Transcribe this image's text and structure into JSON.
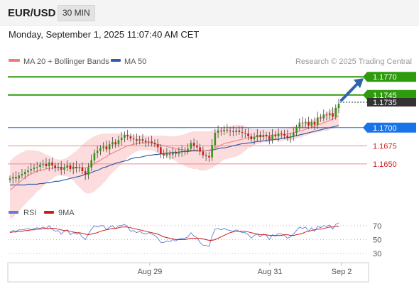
{
  "header": {
    "pair": "EUR/USD",
    "timeframe": "30 MIN",
    "datetime": "Monday, September 1, 2025 11:07:40 AM CET"
  },
  "colors": {
    "green_level": "#2e9a0e",
    "blue_level": "#1874e8",
    "red_level": "#f08a8a",
    "price_dark": "#333333",
    "candle_up": "#2e9a0e",
    "candle_down": "#d11a1a",
    "bollinger_fill": "#fbd6d6",
    "ma20": "#f07a7a",
    "ma50": "#2f5fa8",
    "rsi": "#5b7fd6",
    "rsi_ma": "#d11a1a",
    "arrow": "#2f63a8"
  },
  "chart_data": [
    {
      "type": "candlestick",
      "legend": [
        "MA 20 + Bollinger Bands",
        "MA 50"
      ],
      "legend_placement": "top-left",
      "source": "Research © 2025 Trading Central",
      "ylim": [
        1.16,
        1.178
      ],
      "levels": [
        {
          "value": 1.177,
          "label": "1.1770",
          "kind": "green"
        },
        {
          "value": 1.1745,
          "label": "1.1745",
          "kind": "green"
        },
        {
          "value": 1.1735,
          "label": "1.1735",
          "kind": "price"
        },
        {
          "value": 1.17,
          "label": "1.1700",
          "kind": "blue"
        },
        {
          "value": 1.1675,
          "label": "1.1675",
          "kind": "red"
        },
        {
          "value": 1.165,
          "label": "1.1650",
          "kind": "red"
        }
      ],
      "current_price": 1.1735,
      "closes": [
        1.163,
        1.1632,
        1.163,
        1.1634,
        1.1636,
        1.1639,
        1.1641,
        1.1643,
        1.1645,
        1.1646,
        1.1649,
        1.165,
        1.1647,
        1.1652,
        1.1648,
        1.1644,
        1.1646,
        1.1642,
        1.1645,
        1.1648,
        1.1643,
        1.1646,
        1.1644,
        1.1645,
        1.164,
        1.1635,
        1.1645,
        1.1655,
        1.1665,
        1.1668,
        1.1672,
        1.1674,
        1.167,
        1.1677,
        1.168,
        1.1677,
        1.1683,
        1.1686,
        1.169,
        1.1688,
        1.1685,
        1.1684,
        1.1682,
        1.1684,
        1.1682,
        1.168,
        1.1681,
        1.1679,
        1.1677,
        1.1673,
        1.1664,
        1.1662,
        1.1664,
        1.1663,
        1.1666,
        1.1664,
        1.1667,
        1.1668,
        1.1668,
        1.1671,
        1.1679,
        1.1675,
        1.1673,
        1.1667,
        1.1662,
        1.1661,
        1.1659,
        1.1676,
        1.1693,
        1.1696,
        1.1695,
        1.1697,
        1.1696,
        1.1695,
        1.1694,
        1.1696,
        1.1694,
        1.1693,
        1.1692,
        1.1688,
        1.1684,
        1.1687,
        1.169,
        1.1687,
        1.169,
        1.1688,
        1.1683,
        1.169,
        1.1688,
        1.1692,
        1.1691,
        1.1689,
        1.1686,
        1.1688,
        1.1693,
        1.17,
        1.1707,
        1.1706,
        1.1708,
        1.1703,
        1.1708,
        1.1704,
        1.1714,
        1.1713,
        1.1718,
        1.1717,
        1.172,
        1.1715,
        1.1727,
        1.1733
      ],
      "ma20": [
        1.1614,
        1.1617,
        1.1621,
        1.1624,
        1.1628,
        1.1631,
        1.1634,
        1.1636,
        1.1638,
        1.164,
        1.1641,
        1.1642,
        1.1643,
        1.1644,
        1.1644,
        1.1645,
        1.1645,
        1.1645,
        1.1645,
        1.1646,
        1.1646,
        1.1646,
        1.1645,
        1.1645,
        1.1645,
        1.1645,
        1.1646,
        1.1648,
        1.165,
        1.1653,
        1.1655,
        1.1658,
        1.166,
        1.1663,
        1.1665,
        1.1667,
        1.1669,
        1.1671,
        1.1673,
        1.1675,
        1.1676,
        1.1677,
        1.1678,
        1.1679,
        1.1679,
        1.1679,
        1.1679,
        1.1679,
        1.1678,
        1.1677,
        1.1676,
        1.1675,
        1.1674,
        1.1673,
        1.1672,
        1.1671,
        1.167,
        1.167,
        1.1669,
        1.1669,
        1.1669,
        1.1669,
        1.1669,
        1.1668,
        1.1668,
        1.1668,
        1.1669,
        1.167,
        1.1672,
        1.1674,
        1.1676,
        1.1678,
        1.1679,
        1.168,
        1.1681,
        1.1682,
        1.1683,
        1.1684,
        1.1685,
        1.1686,
        1.1686,
        1.1687,
        1.1688,
        1.1688,
        1.1689,
        1.1689,
        1.1689,
        1.169,
        1.169,
        1.169,
        1.169,
        1.1691,
        1.1691,
        1.1692,
        1.1693,
        1.1694,
        1.1695,
        1.1696,
        1.1698,
        1.1699,
        1.1701,
        1.1702,
        1.1704,
        1.1705,
        1.1707,
        1.1708,
        1.171,
        1.1712,
        1.1714,
        1.1716
      ],
      "ma50": [
        1.1621,
        1.1621,
        1.1621,
        1.1621,
        1.1621,
        1.1621,
        1.1622,
        1.1622,
        1.1622,
        1.1622,
        1.1623,
        1.1623,
        1.1624,
        1.1624,
        1.1625,
        1.1626,
        1.1626,
        1.1627,
        1.1628,
        1.1629,
        1.163,
        1.1631,
        1.1632,
        1.1633,
        1.1634,
        1.1636,
        1.1637,
        1.1638,
        1.164,
        1.1641,
        1.1643,
        1.1645,
        1.1646,
        1.1648,
        1.1649,
        1.1651,
        1.1652,
        1.1653,
        1.1654,
        1.1655,
        1.1657,
        1.1658,
        1.1659,
        1.1659,
        1.166,
        1.1661,
        1.1662,
        1.1662,
        1.1663,
        1.1663,
        1.1664,
        1.1664,
        1.1665,
        1.1665,
        1.1666,
        1.1666,
        1.1666,
        1.1667,
        1.1667,
        1.1667,
        1.1668,
        1.1668,
        1.1668,
        1.1668,
        1.1668,
        1.1668,
        1.1669,
        1.1669,
        1.167,
        1.1671,
        1.1672,
        1.1672,
        1.1673,
        1.1674,
        1.1675,
        1.1676,
        1.1677,
        1.1678,
        1.1678,
        1.1679,
        1.1679,
        1.168,
        1.1681,
        1.1681,
        1.1682,
        1.1682,
        1.1683,
        1.1683,
        1.1684,
        1.1684,
        1.1685,
        1.1686,
        1.1686,
        1.1687,
        1.1688,
        1.1689,
        1.169,
        1.1691,
        1.1692,
        1.1693,
        1.1694,
        1.1695,
        1.1696,
        1.1697,
        1.1698,
        1.1699,
        1.17,
        1.1701,
        1.1702,
        1.1703
      ],
      "band_upper": [
        1.1654,
        1.1658,
        1.1661,
        1.1664,
        1.1666,
        1.1668,
        1.1669,
        1.1669,
        1.1669,
        1.1668,
        1.1667,
        1.1665,
        1.1663,
        1.1661,
        1.1659,
        1.1657,
        1.1656,
        1.1656,
        1.1657,
        1.1659,
        1.1662,
        1.1665,
        1.1668,
        1.1672,
        1.1676,
        1.168,
        1.1683,
        1.1686,
        1.1688,
        1.169,
        1.1691,
        1.1692,
        1.1692,
        1.1692,
        1.1692,
        1.1692,
        1.1692,
        1.1692,
        1.1692,
        1.1691,
        1.169,
        1.1689,
        1.1689,
        1.1689,
        1.1689,
        1.1689,
        1.1689,
        1.1689,
        1.1689,
        1.1689,
        1.1689,
        1.1689,
        1.1688,
        1.1688,
        1.1688,
        1.1688,
        1.1689,
        1.169,
        1.1691,
        1.1693,
        1.1694,
        1.1695,
        1.1695,
        1.1695,
        1.1695,
        1.1695,
        1.1695,
        1.1696,
        1.1697,
        1.1698,
        1.1699,
        1.17,
        1.1701,
        1.1702,
        1.1703,
        1.1704,
        1.1704,
        1.1703,
        1.1702,
        1.17,
        1.1699,
        1.1698,
        1.1698,
        1.1698,
        1.1698,
        1.1698,
        1.1698,
        1.1698,
        1.1698,
        1.1698,
        1.1699,
        1.1699,
        1.17,
        1.1701,
        1.1702,
        1.1703,
        1.1704,
        1.1705,
        1.1707,
        1.1708,
        1.171,
        1.1712,
        1.1714,
        1.1716,
        1.1718,
        1.1721,
        1.1723,
        1.1726,
        1.1728,
        1.173
      ],
      "band_lower": [
        1.1574,
        1.1576,
        1.1581,
        1.1584,
        1.159,
        1.1594,
        1.1599,
        1.1603,
        1.1607,
        1.1612,
        1.1615,
        1.1619,
        1.1623,
        1.1627,
        1.1629,
        1.1633,
        1.1634,
        1.1634,
        1.1633,
        1.1633,
        1.163,
        1.1627,
        1.1622,
        1.1618,
        1.1614,
        1.161,
        1.1609,
        1.161,
        1.1612,
        1.1616,
        1.1619,
        1.1624,
        1.1628,
        1.1634,
        1.1638,
        1.1642,
        1.1646,
        1.165,
        1.1654,
        1.1659,
        1.1662,
        1.1665,
        1.1667,
        1.1669,
        1.1669,
        1.1669,
        1.1669,
        1.1669,
        1.1667,
        1.1665,
        1.1663,
        1.1661,
        1.166,
        1.1658,
        1.1656,
        1.1654,
        1.1651,
        1.165,
        1.1647,
        1.1645,
        1.1644,
        1.1643,
        1.1643,
        1.1641,
        1.1641,
        1.1641,
        1.1643,
        1.1644,
        1.1647,
        1.165,
        1.1653,
        1.1656,
        1.1657,
        1.1658,
        1.1659,
        1.166,
        1.1662,
        1.1665,
        1.1668,
        1.1672,
        1.1673,
        1.1676,
        1.1678,
        1.1678,
        1.168,
        1.168,
        1.168,
        1.1682,
        1.1682,
        1.1682,
        1.1681,
        1.1683,
        1.1682,
        1.1683,
        1.1684,
        1.1685,
        1.1686,
        1.1687,
        1.1689,
        1.169,
        1.1692,
        1.1692,
        1.1694,
        1.1694,
        1.1696,
        1.1695,
        1.1697,
        1.1698,
        1.17,
        1.1702
      ],
      "forecast": {
        "from": 1.1735,
        "to": 1.177
      }
    },
    {
      "type": "line",
      "legend": [
        "RSI",
        "9MA"
      ],
      "legend_placement": "top-left",
      "ylim": [
        20,
        80
      ],
      "yticks": [
        70,
        50,
        30
      ],
      "x_tick_labels": [
        "Aug 29",
        "Aug 31",
        "Sep 2"
      ],
      "rsi": [
        61,
        63,
        62,
        64,
        64,
        65,
        66,
        64,
        66,
        67,
        66,
        68,
        66,
        70,
        65,
        62,
        63,
        58,
        62,
        64,
        57,
        60,
        58,
        59,
        54,
        50,
        58,
        65,
        70,
        68,
        70,
        70,
        64,
        68,
        70,
        66,
        70,
        70,
        72,
        68,
        62,
        63,
        60,
        62,
        59,
        58,
        60,
        58,
        56,
        52,
        46,
        46,
        48,
        47,
        50,
        48,
        51,
        52,
        52,
        54,
        60,
        55,
        53,
        46,
        42,
        42,
        40,
        55,
        65,
        66,
        64,
        66,
        64,
        63,
        62,
        64,
        62,
        60,
        60,
        57,
        52,
        56,
        58,
        54,
        58,
        56,
        50,
        57,
        55,
        59,
        58,
        56,
        52,
        54,
        58,
        63,
        68,
        66,
        68,
        62,
        67,
        62,
        69,
        67,
        70,
        69,
        71,
        65,
        72,
        74
      ],
      "rsi_ma": [
        60,
        61,
        61,
        62,
        62,
        63,
        63,
        64,
        64,
        65,
        65,
        66,
        66,
        66,
        66,
        66,
        65,
        64,
        63,
        63,
        62,
        61,
        60,
        60,
        59,
        58,
        57,
        58,
        59,
        60,
        62,
        63,
        64,
        65,
        66,
        66,
        67,
        68,
        68,
        68,
        67,
        66,
        65,
        64,
        63,
        62,
        61,
        60,
        59,
        58,
        56,
        54,
        53,
        52,
        51,
        50,
        50,
        50,
        50,
        51,
        52,
        52,
        52,
        52,
        51,
        50,
        49,
        49,
        50,
        52,
        54,
        56,
        58,
        60,
        61,
        62,
        62,
        62,
        62,
        61,
        60,
        59,
        58,
        57,
        57,
        57,
        56,
        56,
        56,
        56,
        56,
        57,
        57,
        56,
        56,
        57,
        58,
        59,
        61,
        62,
        63,
        64,
        65,
        65,
        66,
        67,
        68,
        68,
        69,
        69
      ]
    }
  ]
}
